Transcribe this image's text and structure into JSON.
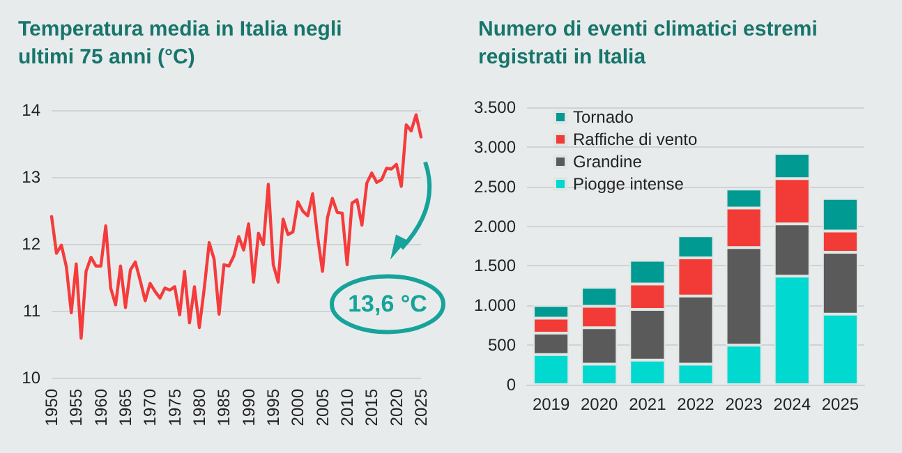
{
  "chart_data": [
    {
      "type": "line",
      "title": "Temperatura media in Italia negli ultimi 75 anni (°C)",
      "color": "#f53b3b",
      "marker": "none",
      "line_style": "solid",
      "grid": "y",
      "legend": false,
      "x": [
        1950,
        1951,
        1952,
        1953,
        1954,
        1955,
        1956,
        1957,
        1958,
        1959,
        1960,
        1961,
        1962,
        1963,
        1964,
        1965,
        1966,
        1967,
        1968,
        1969,
        1970,
        1971,
        1972,
        1973,
        1974,
        1975,
        1976,
        1977,
        1978,
        1979,
        1980,
        1981,
        1982,
        1983,
        1984,
        1985,
        1986,
        1987,
        1988,
        1989,
        1990,
        1991,
        1992,
        1993,
        1994,
        1995,
        1996,
        1997,
        1998,
        1999,
        2000,
        2001,
        2002,
        2003,
        2004,
        2005,
        2006,
        2007,
        2008,
        2009,
        2010,
        2011,
        2012,
        2013,
        2014,
        2015,
        2016,
        2017,
        2018,
        2019,
        2020,
        2021,
        2022,
        2023,
        2024,
        2025
      ],
      "values": [
        12.41,
        11.86,
        11.98,
        11.66,
        10.97,
        11.7,
        10.59,
        11.59,
        11.8,
        11.67,
        11.67,
        12.27,
        11.34,
        11.09,
        11.67,
        11.05,
        11.61,
        11.73,
        11.45,
        11.15,
        11.41,
        11.29,
        11.19,
        11.34,
        11.31,
        11.36,
        10.94,
        11.59,
        10.82,
        11.36,
        10.75,
        11.34,
        12.02,
        11.77,
        10.95,
        11.69,
        11.67,
        11.82,
        12.11,
        11.91,
        12.3,
        11.43,
        12.16,
        11.99,
        12.89,
        11.69,
        11.43,
        12.37,
        12.14,
        12.18,
        12.63,
        12.49,
        12.42,
        12.75,
        12.11,
        11.59,
        12.39,
        12.68,
        12.47,
        12.46,
        11.69,
        12.61,
        12.66,
        12.28,
        12.91,
        13.06,
        12.92,
        12.96,
        13.13,
        13.12,
        13.19,
        12.86,
        13.78,
        13.69,
        13.93,
        13.6
      ],
      "xlim": [
        1950,
        2025
      ],
      "xticks": [
        1950,
        1955,
        1960,
        1965,
        1970,
        1975,
        1980,
        1985,
        1990,
        1995,
        2000,
        2005,
        2010,
        2015,
        2020,
        2025
      ],
      "ylim": [
        10,
        14
      ],
      "yticks": [
        10,
        11,
        12,
        13,
        14
      ],
      "annotations": [
        "13,6 °C"
      ]
    },
    {
      "type": "bar",
      "title": "Numero di eventi climatici estremi registrati in Italia",
      "stacked": true,
      "grid": "y",
      "legend": "top left",
      "categories": [
        "2019",
        "2020",
        "2021",
        "2022",
        "2023",
        "2024",
        "2025"
      ],
      "series": [
        {
          "name": "Piogge intense",
          "color": "#00d8d0",
          "values": [
            380,
            260,
            310,
            260,
            500,
            1370,
            890
          ]
        },
        {
          "name": "Grandine",
          "color": "#5a5a5a",
          "values": [
            270,
            460,
            640,
            860,
            1230,
            660,
            780
          ]
        },
        {
          "name": "Raffiche di vento",
          "color": "#f23b36",
          "values": [
            190,
            270,
            320,
            480,
            500,
            570,
            270
          ]
        },
        {
          "name": "Tornado",
          "color": "#009a93",
          "values": [
            160,
            240,
            300,
            280,
            240,
            320,
            410
          ]
        }
      ],
      "ylim": [
        0,
        3500
      ],
      "yticks": [
        0,
        500,
        {
          "value": 1000,
          "label": "1.000"
        },
        {
          "value": 1500,
          "label": "1.500"
        },
        {
          "value": 2000,
          "label": "2.000"
        },
        {
          "value": 2500,
          "label": "2.500"
        },
        {
          "value": 3000,
          "label": "3.000"
        },
        {
          "value": 3500,
          "label": "3.500"
        }
      ]
    }
  ]
}
